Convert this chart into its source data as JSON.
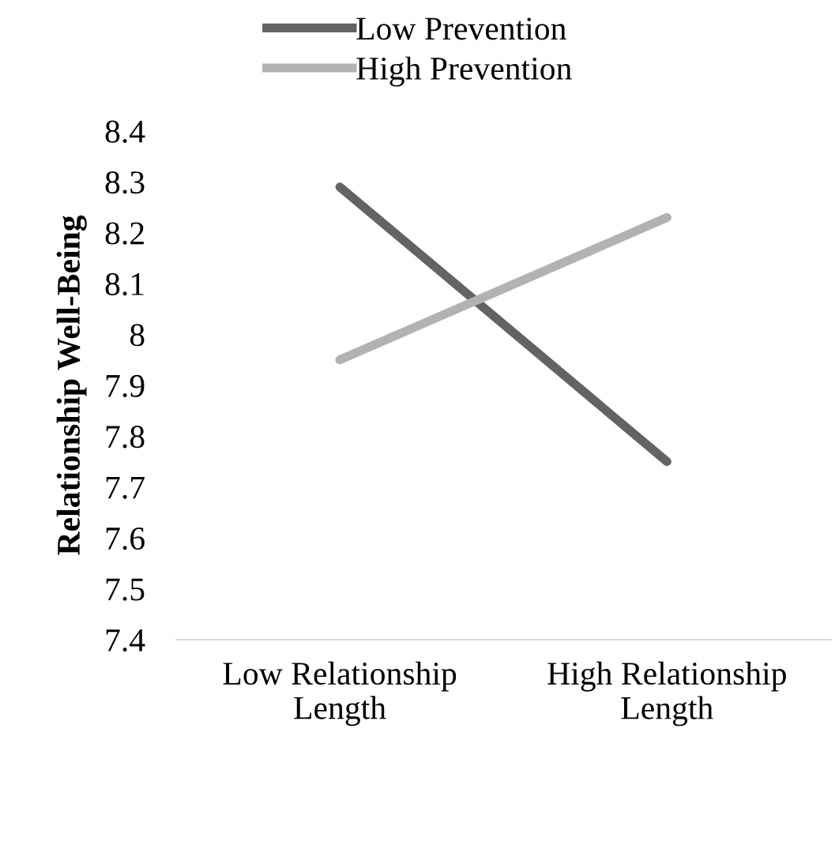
{
  "chart_data": {
    "type": "line",
    "ylabel": "Relationship Well-Being",
    "categories": [
      "Low Relationship\nLength",
      "High Relationship\nLength"
    ],
    "series": [
      {
        "name": "Low Prevention",
        "color": "#636363",
        "values": [
          8.29,
          7.75
        ]
      },
      {
        "name": "High Prevention",
        "color": "#b2b2b2",
        "values": [
          7.95,
          8.23
        ]
      }
    ],
    "ylim": [
      7.4,
      8.4
    ],
    "yticks": [
      7.4,
      7.5,
      7.6,
      7.7,
      7.8,
      7.9,
      {
        "value": 8.0,
        "label": "8"
      },
      8.1,
      8.2,
      8.3,
      8.4
    ],
    "grid": false,
    "legend": "top",
    "marker": "none",
    "line_style": "solid"
  }
}
